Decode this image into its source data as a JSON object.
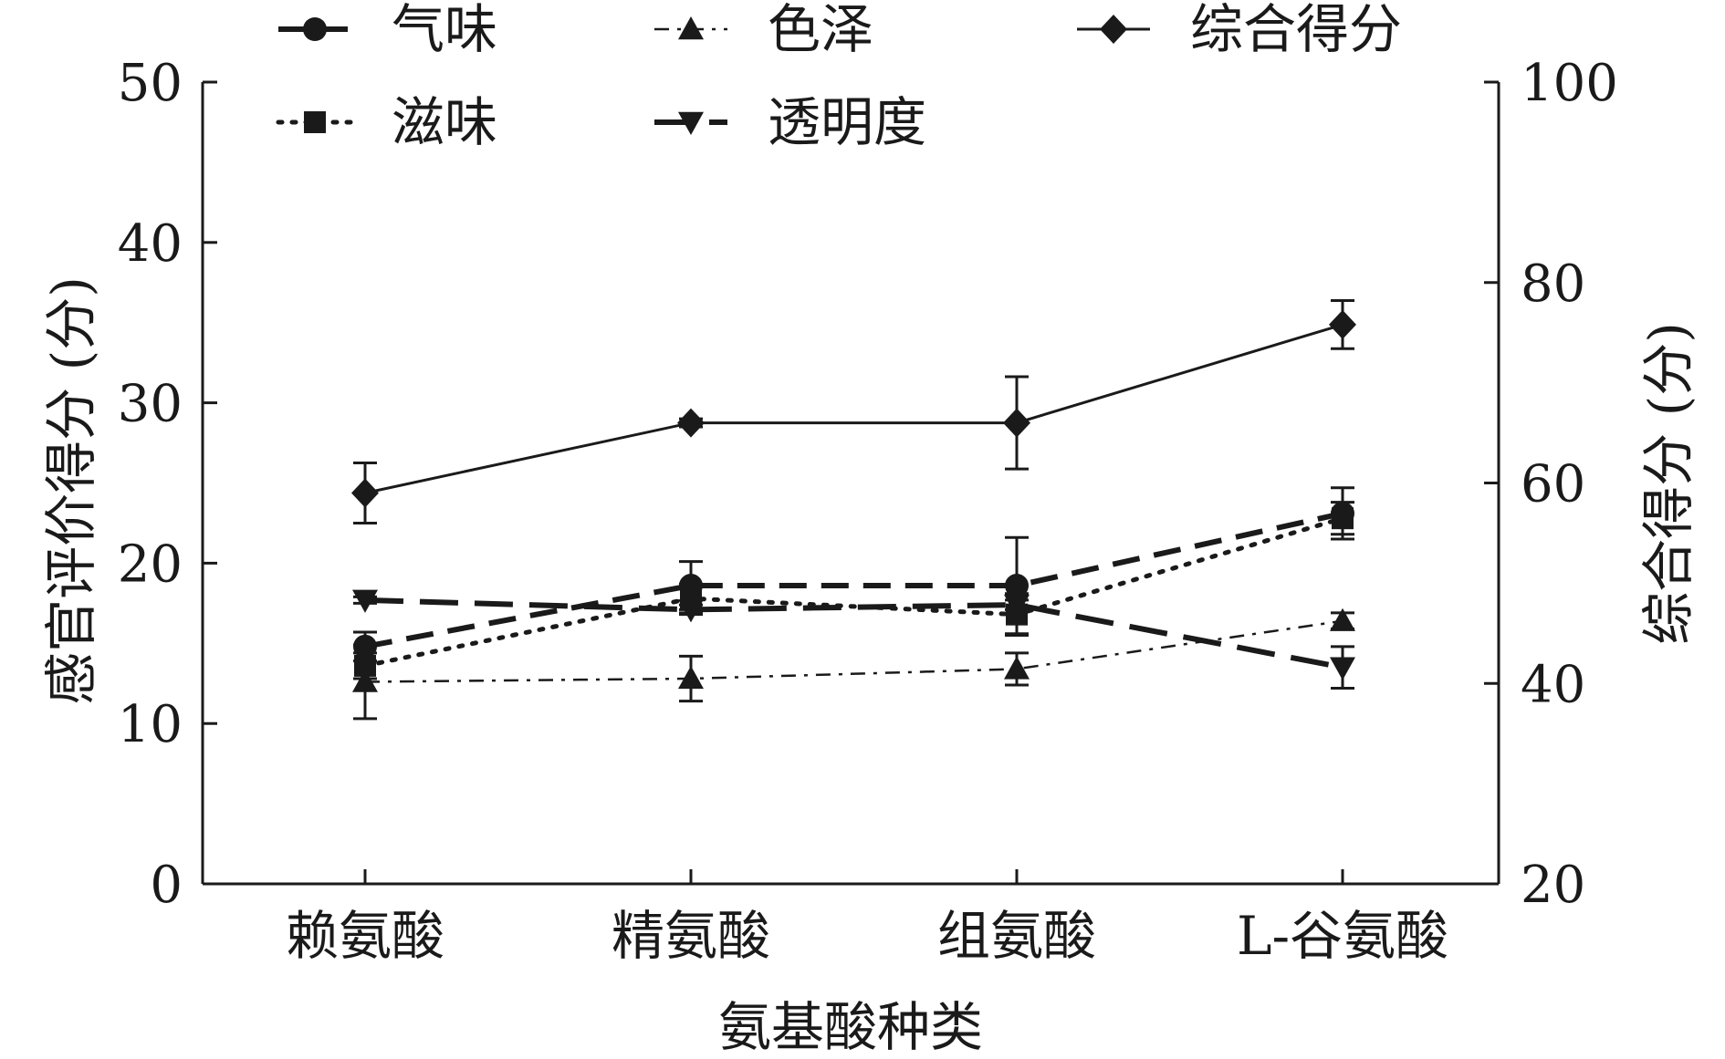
{
  "chart_data": {
    "type": "line",
    "title": "",
    "xlabel": "氨基酸种类",
    "ylabel": "感官评价得分 (分)",
    "y2label": "综合得分 (分)",
    "categories": [
      "赖氨酸",
      "精氨酸",
      "组氨酸",
      "L-谷氨酸"
    ],
    "ylim": [
      0,
      50
    ],
    "yticks": [
      0,
      10,
      20,
      30,
      40,
      50
    ],
    "y2lim": [
      20,
      100
    ],
    "y2ticks": [
      20,
      40,
      60,
      80,
      100
    ],
    "legend_position": "top",
    "series": [
      {
        "name": "气味",
        "axis": "left",
        "marker": "circle",
        "line": "dash",
        "values": [
          14.8,
          18.6,
          18.6,
          23.1
        ],
        "errors": [
          0.9,
          1.5,
          3.0,
          1.6
        ]
      },
      {
        "name": "滋味",
        "axis": "left",
        "marker": "square",
        "line": "dot",
        "values": [
          13.6,
          17.8,
          16.8,
          22.8
        ],
        "errors": [
          0.8,
          0.9,
          1.3,
          1.0
        ]
      },
      {
        "name": "色泽",
        "axis": "left",
        "marker": "triangle-up",
        "line": "dashdot",
        "values": [
          12.6,
          12.8,
          13.4,
          16.4
        ],
        "errors": [
          2.3,
          1.4,
          1.0,
          0.5
        ]
      },
      {
        "name": "透明度",
        "axis": "left",
        "marker": "triangle-down",
        "line": "longdash",
        "values": [
          17.7,
          17.1,
          17.4,
          13.5
        ],
        "errors": [
          0.2,
          0.3,
          0.3,
          1.3
        ]
      },
      {
        "name": "综合得分",
        "axis": "right",
        "marker": "diamond",
        "line": "solid",
        "values": [
          59.0,
          66.0,
          66.0,
          75.8
        ],
        "errors": [
          3.0,
          0.4,
          4.6,
          2.4
        ]
      }
    ]
  }
}
